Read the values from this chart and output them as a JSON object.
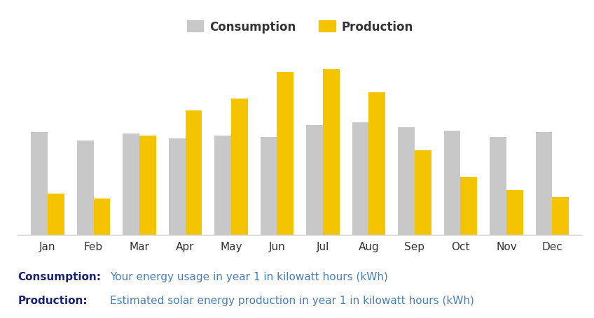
{
  "months": [
    "Jan",
    "Feb",
    "Mar",
    "Apr",
    "May",
    "Jun",
    "Jul",
    "Aug",
    "Sep",
    "Oct",
    "Nov",
    "Dec"
  ],
  "consumption": [
    62,
    57,
    61,
    58,
    60,
    59,
    66,
    68,
    65,
    63,
    59,
    62
  ],
  "production": [
    25,
    22,
    60,
    75,
    82,
    98,
    100,
    86,
    51,
    35,
    27,
    23
  ],
  "consumption_color": "#c8c8c8",
  "production_color": "#f5c400",
  "background_color": "#ffffff",
  "legend_fontsize": 12,
  "tick_fontsize": 11,
  "annotation_label_fontsize": 11,
  "annotation_text_fontsize": 11,
  "annotation_label_color": "#1a2370",
  "annotation_text_color": "#4a7fb5",
  "axis_line_color": "#cccccc",
  "bar_width": 0.36,
  "ylim": [
    0,
    115
  ],
  "consumption_label": "Consumption",
  "production_label": "Production",
  "bottom_annotations": [
    {
      "label": "Consumption:",
      "text": "Your energy usage in year 1 in kilowatt hours (kWh)"
    },
    {
      "label": "Production:",
      "text": "Estimated solar energy production in year 1 in kilowatt hours (kWh)"
    }
  ]
}
